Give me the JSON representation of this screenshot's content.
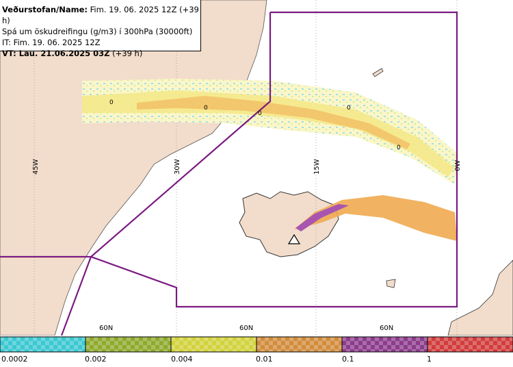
{
  "info": {
    "line1_key": "Veðurstofan/Name:",
    "line1_val": " Fim. 19. 06. 2025 12Z (+39 h)",
    "line2": "Spá um öskudreifingu (g/m3) í 300hPa (30000ft)",
    "line3": "IT: Fim. 19. 06. 2025 12Z",
    "line4_key": "VT: Lau. 21.06.2025 03Z",
    "line4_val": " (+39 h)"
  },
  "map": {
    "lon_labels": [
      "45W",
      "30W",
      "15W",
      "0W"
    ],
    "lat_labels": [
      "60N",
      "60N",
      "60N"
    ],
    "contour_labels": [
      "0",
      "0",
      "0",
      "0",
      "0"
    ],
    "volcano_icon": "triangle-volcano-icon"
  },
  "legend": {
    "ticks": [
      "0.0002",
      "0.002",
      "0.004",
      "0.01",
      "0.1",
      "1"
    ],
    "colors": [
      "#3cc8d2",
      "#8faa2e",
      "#d2d23c",
      "#d28c3c",
      "#8c3c8c",
      "#d23c3c"
    ]
  },
  "colors": {
    "land": "#f2dccb",
    "boundary": "#7a1a82",
    "ash_light": "#f5e98a",
    "ash_mid": "#f0aa50",
    "ash_high": "#a855b0"
  }
}
